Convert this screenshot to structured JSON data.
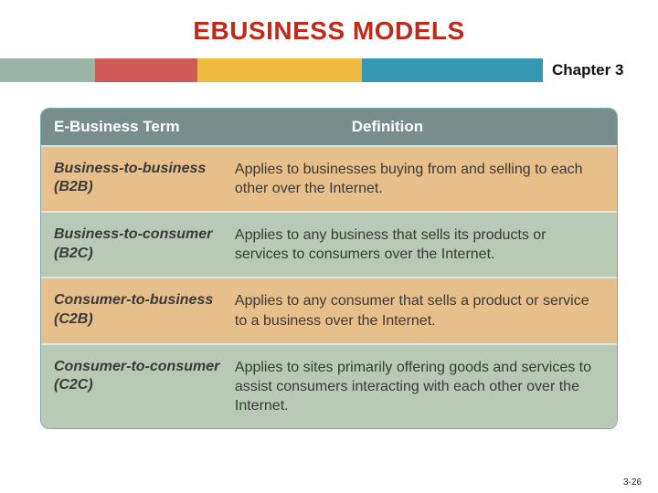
{
  "title": {
    "text": "EBUSINESS MODELS",
    "color": "#bf2a1a"
  },
  "colorbar": {
    "segments": [
      {
        "color": "#9bb6a8"
      },
      {
        "color": "#cf5a57"
      },
      {
        "color": "#f0b93f"
      },
      {
        "color": "#3698b3"
      }
    ],
    "chapter_label": "Chapter 3"
  },
  "table": {
    "header": {
      "bg": "#788e8d",
      "col1": "E-Business Term",
      "col2": "Definition"
    },
    "rows": [
      {
        "bg": "#e7bf8a",
        "term": "Business-to-business (B2B)",
        "definition": "Applies to businesses buying from and selling to each other over the Internet."
      },
      {
        "bg": "#b8c9b5",
        "term": "Business-to-consumer (B2C)",
        "definition": "Applies to any business that sells its products or services to consumers over the Internet."
      },
      {
        "bg": "#e7bf8a",
        "term": "Consumer-to-business (C2B)",
        "definition": "Applies to any consumer that sells a product or service to a business over the Internet."
      },
      {
        "bg": "#b8c9b5",
        "term": "Consumer-to-consumer (C2C)",
        "definition": "Applies to sites primarily offering goods and services to assist consumers interacting with each other over the Internet."
      }
    ]
  },
  "page_number": "3-26"
}
